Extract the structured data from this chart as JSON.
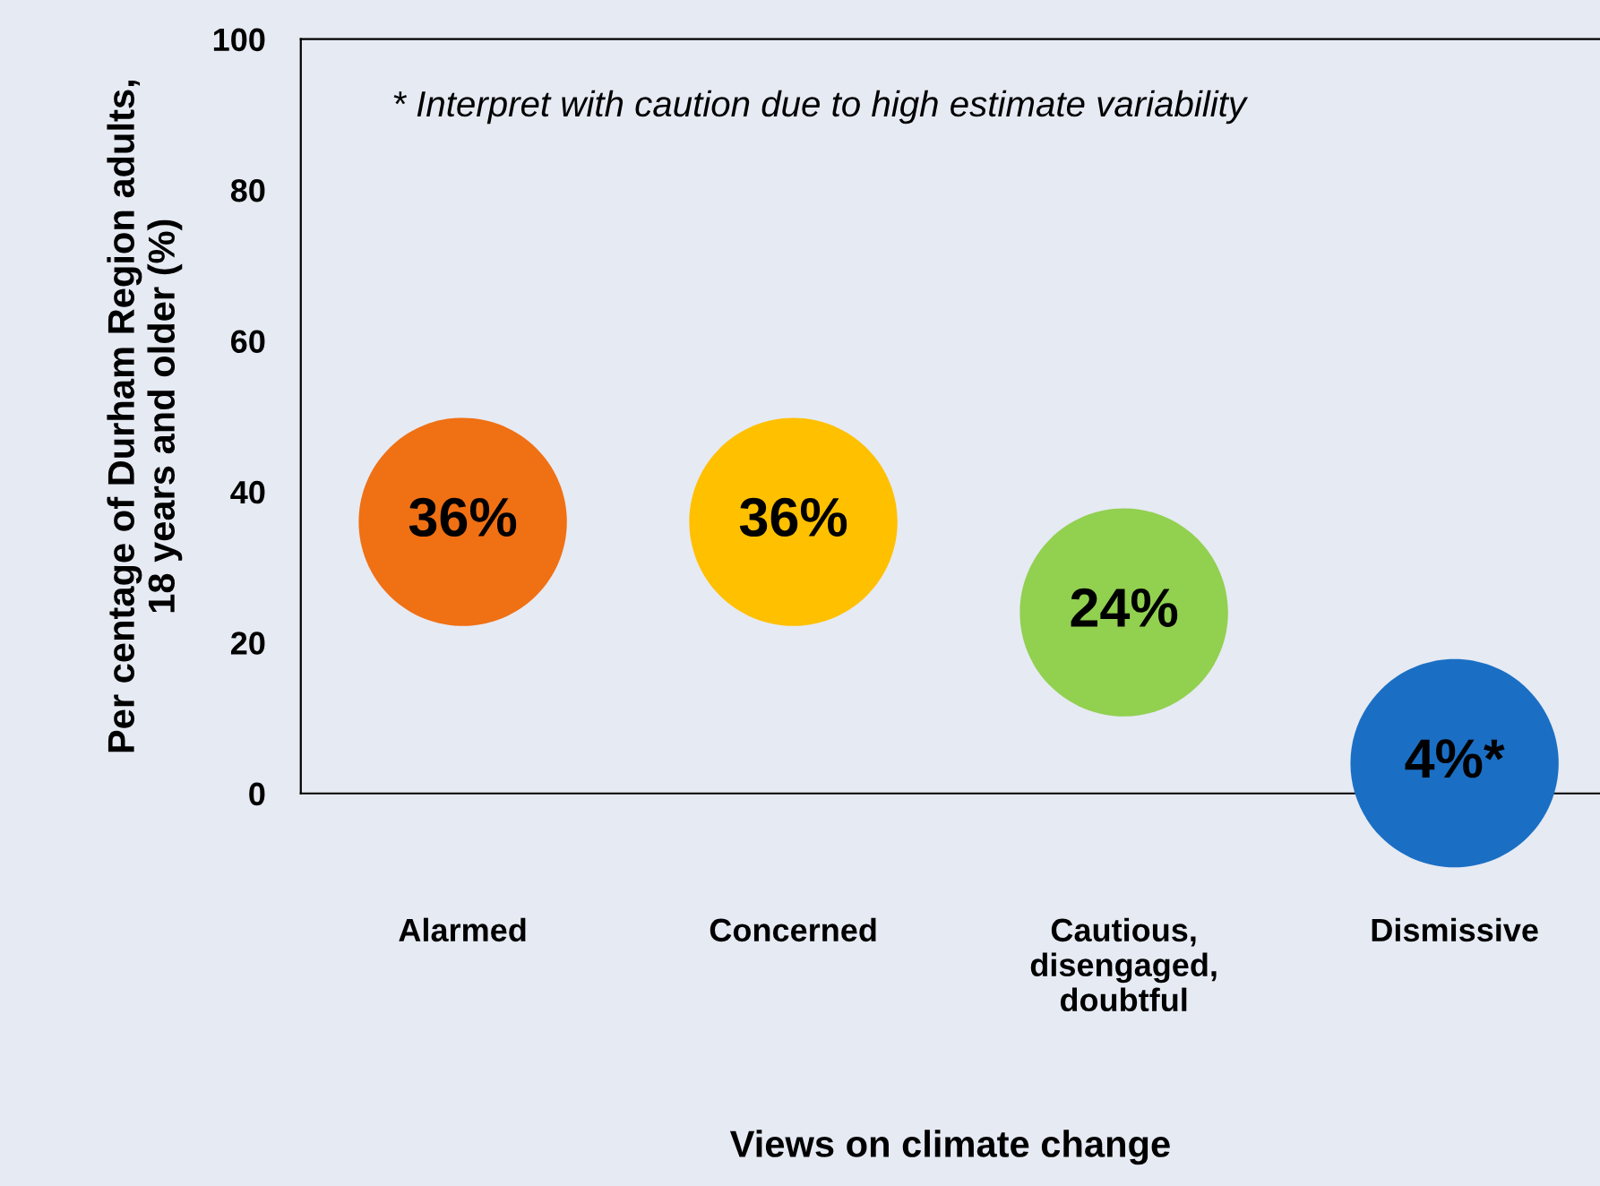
{
  "chart_data": {
    "type": "bubble",
    "categories": [
      "Alarmed",
      "Concerned",
      "Cautious,\ndisengaged,\ndoubtful",
      "Dismissive"
    ],
    "values": [
      36,
      36,
      24,
      4
    ],
    "sizes": [
      1,
      1,
      1,
      1
    ],
    "colors": [
      "#f07014",
      "#ffc000",
      "#92d050",
      "#1a6fc4"
    ],
    "value_labels": [
      "36%",
      "36%",
      "24%",
      "4%*"
    ],
    "ylim": [
      0,
      100
    ],
    "yticks": [
      0,
      20,
      40,
      60,
      80,
      100
    ],
    "xlabel": "Views on climate change",
    "ylabel": "Per centage of Durham Region adults,\n18 years and older (%)",
    "annotations": [
      "* Interpret with caution due to high estimate variability"
    ],
    "grid": false
  }
}
